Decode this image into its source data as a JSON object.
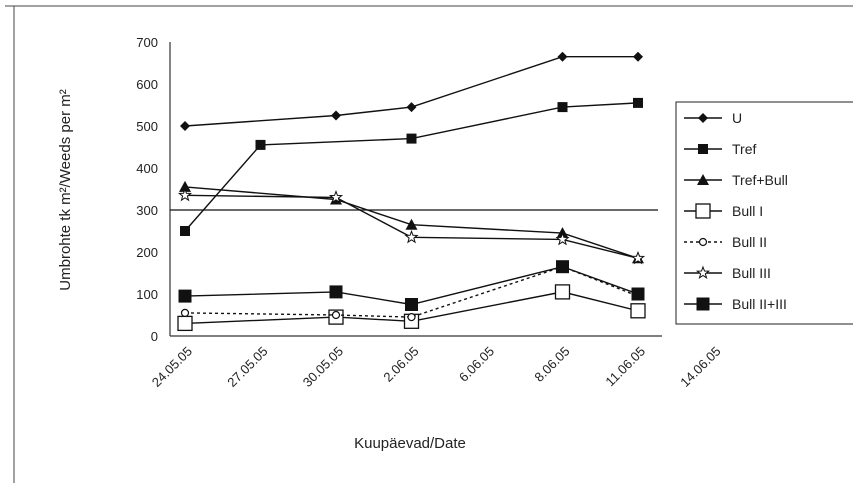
{
  "chart_data": {
    "type": "line",
    "title": "",
    "xlabel": "Kuupäevad/Date",
    "ylabel": "Umbrohte tk m²/Weeds per m²",
    "ylim": [
      0,
      700
    ],
    "yticks": [
      0,
      100,
      200,
      300,
      400,
      500,
      600,
      700
    ],
    "categories": [
      "24.05.05",
      "27.05.05",
      "30.05.05",
      "2.06.05",
      "6.06.05",
      "8.06.05",
      "11.06.05",
      "14.06.05"
    ],
    "reference_line": 300,
    "legend_position": "right",
    "series": [
      {
        "name": "U",
        "marker": "diamond",
        "dash": "",
        "x": [
          0,
          2,
          3,
          5,
          6
        ],
        "values": [
          500,
          525,
          545,
          665,
          665
        ]
      },
      {
        "name": "Tref",
        "marker": "square-filled",
        "dash": "",
        "x": [
          0,
          1,
          3,
          5,
          6
        ],
        "values": [
          250,
          455,
          470,
          545,
          555
        ]
      },
      {
        "name": "Tref+Bull",
        "marker": "triangle",
        "dash": "",
        "x": [
          0,
          2,
          3,
          5,
          6
        ],
        "values": [
          355,
          325,
          265,
          245,
          185
        ]
      },
      {
        "name": "Bull I",
        "marker": "square-open",
        "dash": "",
        "x": [
          0,
          2,
          3,
          5,
          6
        ],
        "values": [
          30,
          45,
          35,
          105,
          60
        ]
      },
      {
        "name": "Bull II",
        "marker": "circle-open",
        "dash": "3,3",
        "x": [
          0,
          2,
          3,
          5,
          6
        ],
        "values": [
          55,
          50,
          45,
          165,
          95
        ]
      },
      {
        "name": "Bull III",
        "marker": "star",
        "dash": "",
        "x": [
          0,
          2,
          3,
          5,
          6
        ],
        "values": [
          335,
          330,
          235,
          230,
          185
        ]
      },
      {
        "name": "Bull II+III",
        "marker": "square-filled-large",
        "dash": "",
        "x": [
          0,
          2,
          3,
          5,
          6
        ],
        "values": [
          95,
          105,
          75,
          165,
          100
        ]
      }
    ]
  }
}
